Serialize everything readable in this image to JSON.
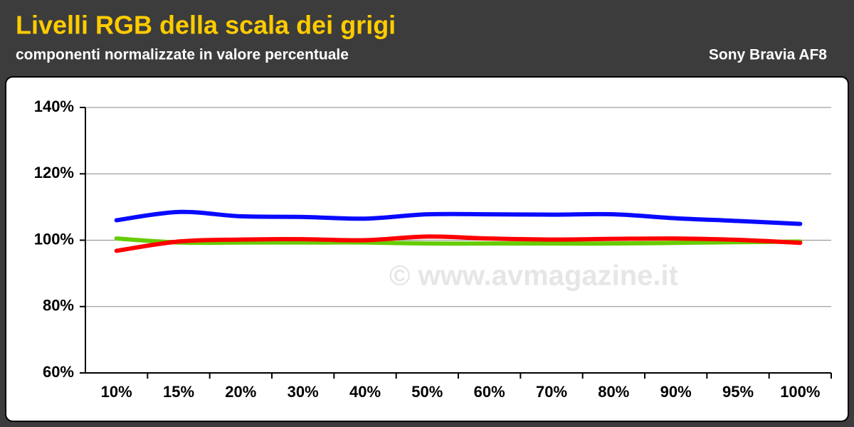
{
  "chart_data": {
    "type": "line",
    "title": "Livelli RGB della scala dei grigi",
    "subtitle": "componenti normalizzate in valore percentuale",
    "device": "Sony Bravia AF8",
    "watermark": "© www.avmagazine.it",
    "categories": [
      "10%",
      "15%",
      "20%",
      "30%",
      "40%",
      "50%",
      "60%",
      "70%",
      "80%",
      "90%",
      "95%",
      "100%"
    ],
    "series": [
      {
        "name": "Blue",
        "color": "#0a0aff",
        "values": [
          106,
          108.5,
          107.2,
          107,
          106.5,
          107.8,
          107.8,
          107.7,
          107.8,
          106.6,
          105.8,
          104.9
        ]
      },
      {
        "name": "Green",
        "color": "#66cc00",
        "values": [
          100.5,
          99.3,
          99.3,
          99.3,
          99.3,
          99,
          99,
          99,
          99,
          99.2,
          99.4,
          99.6
        ]
      },
      {
        "name": "Red",
        "color": "#ff0000",
        "values": [
          96.8,
          99.6,
          100.2,
          100.3,
          100,
          101.1,
          100.5,
          100.2,
          100.4,
          100.5,
          100.1,
          99.2
        ]
      }
    ],
    "ylim": [
      60,
      140
    ],
    "yticks": [
      {
        "value": 60,
        "label": "60%"
      },
      {
        "value": 80,
        "label": "80%"
      },
      {
        "value": 100,
        "label": "100%"
      },
      {
        "value": 120,
        "label": "120%"
      },
      {
        "value": 140,
        "label": "140%"
      }
    ],
    "grid": true
  }
}
